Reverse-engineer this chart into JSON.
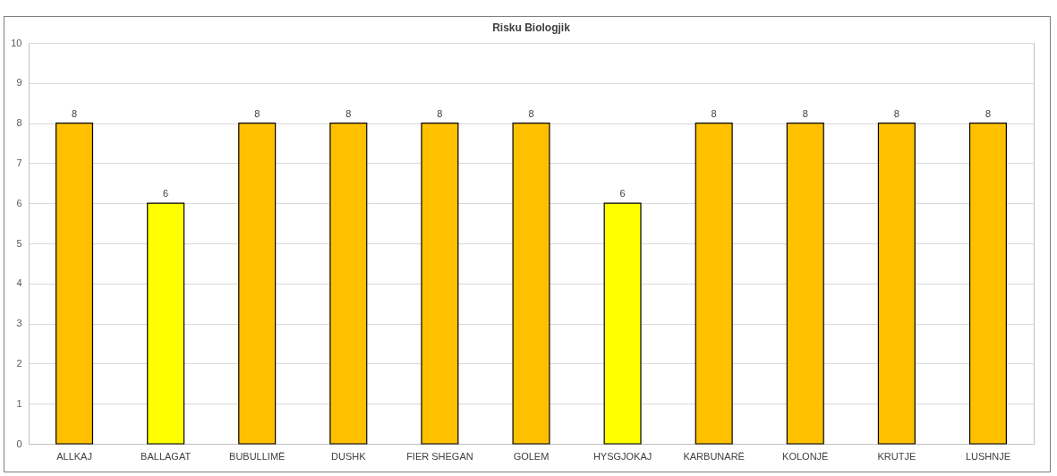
{
  "chart_data": {
    "type": "bar",
    "title": "Risku Biologjik",
    "categories": [
      "ALLKAJ",
      "BALLAGAT",
      "BUBULLIMË",
      "DUSHK",
      "FIER SHEGAN",
      "GOLEM",
      "HYSGJOKAJ",
      "KARBUNARË",
      "KOLONJË",
      "KRUTJE",
      "LUSHNJE"
    ],
    "values": [
      8,
      6,
      8,
      8,
      8,
      8,
      6,
      8,
      8,
      8,
      8
    ],
    "colors": [
      "#ffc000",
      "#ffff00",
      "#ffc000",
      "#ffc000",
      "#ffc000",
      "#ffc000",
      "#ffff00",
      "#ffc000",
      "#ffc000",
      "#ffc000",
      "#ffc000"
    ],
    "ylim": [
      0,
      10
    ],
    "yticks": [
      0,
      1,
      2,
      3,
      4,
      5,
      6,
      7,
      8,
      9,
      10
    ],
    "grid": "y",
    "data_labels": true
  }
}
